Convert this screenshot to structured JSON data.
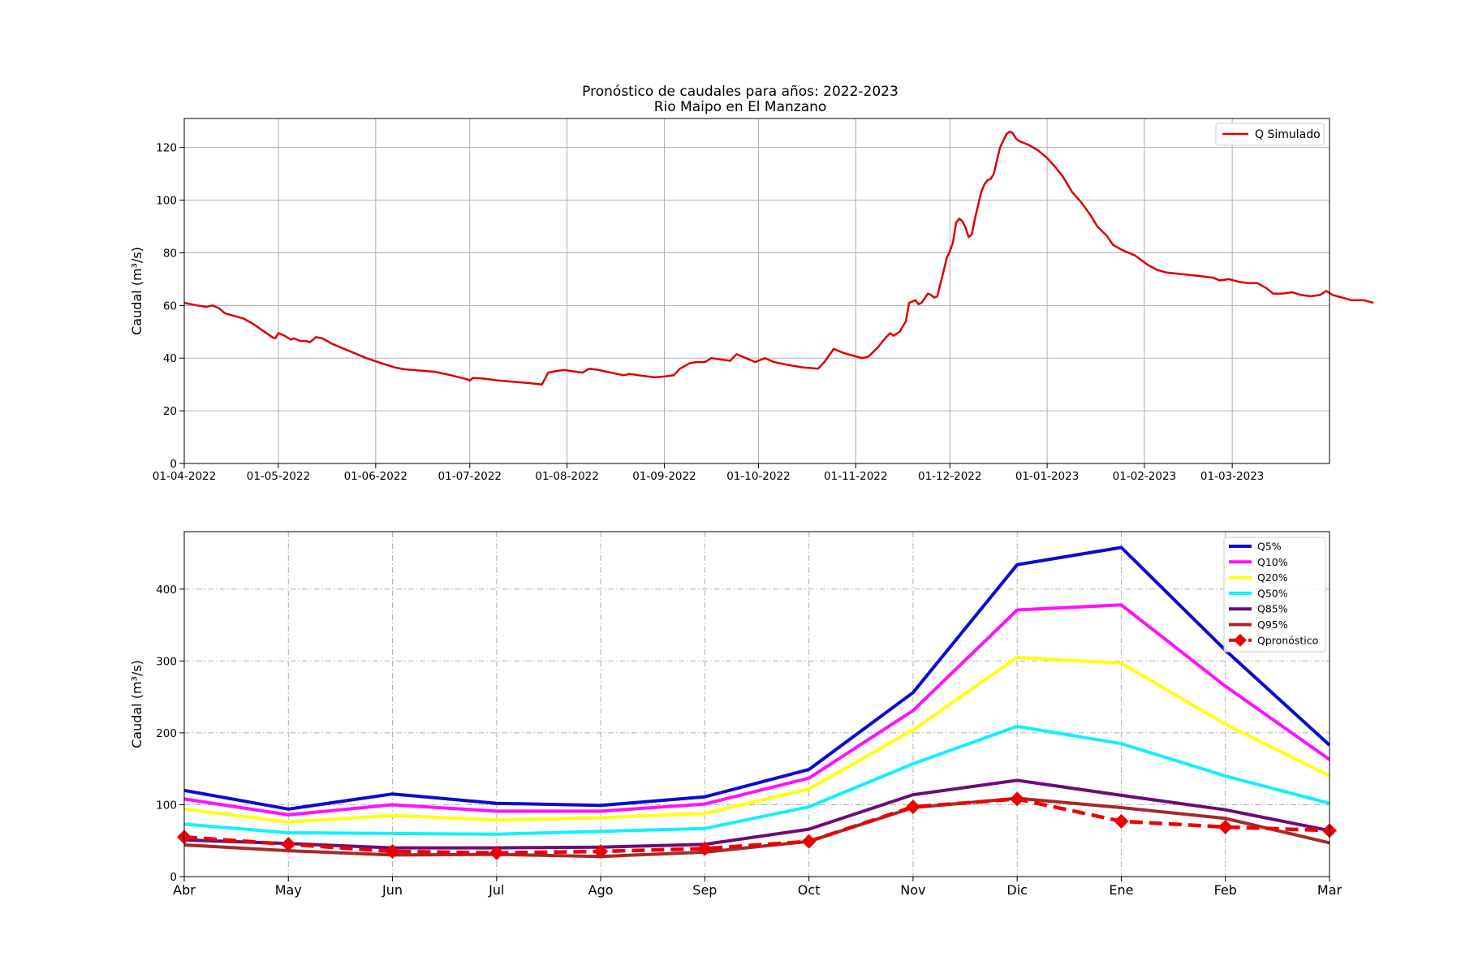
{
  "figure": {
    "title_line1": "Pronóstico de caudales para años: 2022-2023",
    "title_line2": "Rio Maipo en El Manzano"
  },
  "chart_data": [
    {
      "type": "line",
      "ylabel": "Caudal (m³/s)",
      "ylim": [
        0,
        131
      ],
      "yticks": [
        0,
        20,
        40,
        60,
        80,
        100,
        120
      ],
      "grid": true,
      "legend_position": "upper right",
      "xlim_dates": [
        "2022-04-01",
        "2023-03-31"
      ],
      "xtick_dates": [
        "2022-04-01",
        "2022-05-01",
        "2022-06-01",
        "2022-07-01",
        "2022-08-01",
        "2022-09-01",
        "2022-10-01",
        "2022-11-01",
        "2022-12-01",
        "2023-01-01",
        "2023-02-01",
        "2023-03-01"
      ],
      "xtick_labels": [
        "01-04-2022",
        "01-05-2022",
        "01-06-2022",
        "01-07-2022",
        "01-08-2022",
        "01-09-2022",
        "01-10-2022",
        "01-11-2022",
        "01-12-2022",
        "01-01-2023",
        "01-02-2023",
        "01-03-2023"
      ],
      "series": [
        {
          "name": "Q Simulado",
          "color": "#dd0000",
          "points": [
            [
              "2022-04-01",
              61
            ],
            [
              "2022-04-03",
              60.5
            ],
            [
              "2022-04-05",
              60
            ],
            [
              "2022-04-08",
              59.5
            ],
            [
              "2022-04-10",
              60
            ],
            [
              "2022-04-12",
              59
            ],
            [
              "2022-04-14",
              57
            ],
            [
              "2022-04-17",
              56
            ],
            [
              "2022-04-20",
              55
            ],
            [
              "2022-04-23",
              53
            ],
            [
              "2022-04-26",
              50.5
            ],
            [
              "2022-04-29",
              48
            ],
            [
              "2022-04-30",
              47.5
            ],
            [
              "2022-05-01",
              49.5
            ],
            [
              "2022-05-03",
              48.5
            ],
            [
              "2022-05-05",
              47
            ],
            [
              "2022-05-06",
              47.5
            ],
            [
              "2022-05-08",
              46.5
            ],
            [
              "2022-05-10",
              46.5
            ],
            [
              "2022-05-11",
              46
            ],
            [
              "2022-05-13",
              48
            ],
            [
              "2022-05-15",
              47.5
            ],
            [
              "2022-05-18",
              45.5
            ],
            [
              "2022-05-21",
              44
            ],
            [
              "2022-05-25",
              42
            ],
            [
              "2022-05-29",
              40
            ],
            [
              "2022-06-03",
              38
            ],
            [
              "2022-06-07",
              36.5
            ],
            [
              "2022-06-10",
              35.8
            ],
            [
              "2022-06-15",
              35.3
            ],
            [
              "2022-06-20",
              34.8
            ],
            [
              "2022-06-25",
              33.5
            ],
            [
              "2022-06-30",
              32
            ],
            [
              "2022-07-01",
              31.5
            ],
            [
              "2022-07-02",
              32.5
            ],
            [
              "2022-07-05",
              32.3
            ],
            [
              "2022-07-10",
              31.5
            ],
            [
              "2022-07-15",
              31
            ],
            [
              "2022-07-20",
              30.5
            ],
            [
              "2022-07-24",
              30
            ],
            [
              "2022-07-26",
              34.5
            ],
            [
              "2022-07-28",
              35
            ],
            [
              "2022-07-31",
              35.5
            ],
            [
              "2022-08-03",
              35
            ],
            [
              "2022-08-06",
              34.5
            ],
            [
              "2022-08-08",
              36
            ],
            [
              "2022-08-11",
              35.5
            ],
            [
              "2022-08-15",
              34.5
            ],
            [
              "2022-08-19",
              33.5
            ],
            [
              "2022-08-21",
              34
            ],
            [
              "2022-08-25",
              33.3
            ],
            [
              "2022-08-29",
              32.7
            ],
            [
              "2022-09-01",
              33
            ],
            [
              "2022-09-04",
              33.5
            ],
            [
              "2022-09-06",
              36
            ],
            [
              "2022-09-09",
              38
            ],
            [
              "2022-09-11",
              38.5
            ],
            [
              "2022-09-14",
              38.5
            ],
            [
              "2022-09-16",
              40
            ],
            [
              "2022-09-19",
              39.5
            ],
            [
              "2022-09-22",
              39
            ],
            [
              "2022-09-24",
              41.5
            ],
            [
              "2022-09-27",
              40
            ],
            [
              "2022-09-30",
              38.5
            ],
            [
              "2022-10-03",
              40
            ],
            [
              "2022-10-06",
              38.5
            ],
            [
              "2022-10-10",
              37.5
            ],
            [
              "2022-10-15",
              36.5
            ],
            [
              "2022-10-20",
              36
            ],
            [
              "2022-10-22",
              38.5
            ],
            [
              "2022-10-25",
              43.5
            ],
            [
              "2022-10-28",
              42
            ],
            [
              "2022-10-31",
              41
            ],
            [
              "2022-11-03",
              40
            ],
            [
              "2022-11-05",
              40.5
            ],
            [
              "2022-11-08",
              44
            ],
            [
              "2022-11-10",
              47
            ],
            [
              "2022-11-12",
              49.5
            ],
            [
              "2022-11-13",
              48.5
            ],
            [
              "2022-11-15",
              50
            ],
            [
              "2022-11-17",
              54
            ],
            [
              "2022-11-18",
              61
            ],
            [
              "2022-11-19",
              61.5
            ],
            [
              "2022-11-20",
              62
            ],
            [
              "2022-11-21",
              60.5
            ],
            [
              "2022-11-22",
              61
            ],
            [
              "2022-11-24",
              64.5
            ],
            [
              "2022-11-25",
              64
            ],
            [
              "2022-11-26",
              63
            ],
            [
              "2022-11-27",
              63.5
            ],
            [
              "2022-11-29",
              73
            ],
            [
              "2022-11-30",
              78
            ],
            [
              "2022-12-01",
              80.5
            ],
            [
              "2022-12-02",
              84
            ],
            [
              "2022-12-03",
              91.5
            ],
            [
              "2022-12-04",
              93
            ],
            [
              "2022-12-05",
              92
            ],
            [
              "2022-12-06",
              89.5
            ],
            [
              "2022-12-07",
              86
            ],
            [
              "2022-12-08",
              87
            ],
            [
              "2022-12-09",
              93
            ],
            [
              "2022-12-10",
              98
            ],
            [
              "2022-12-11",
              103
            ],
            [
              "2022-12-12",
              106
            ],
            [
              "2022-12-13",
              107.5
            ],
            [
              "2022-12-14",
              108
            ],
            [
              "2022-12-15",
              110
            ],
            [
              "2022-12-16",
              115
            ],
            [
              "2022-12-17",
              120
            ],
            [
              "2022-12-18",
              122.5
            ],
            [
              "2022-12-19",
              125
            ],
            [
              "2022-12-20",
              126
            ],
            [
              "2022-12-21",
              125.5
            ],
            [
              "2022-12-22",
              123.5
            ],
            [
              "2022-12-23",
              122.5
            ],
            [
              "2022-12-26",
              121
            ],
            [
              "2022-12-29",
              119
            ],
            [
              "2023-01-01",
              116
            ],
            [
              "2023-01-04",
              112
            ],
            [
              "2023-01-06",
              109
            ],
            [
              "2023-01-09",
              103
            ],
            [
              "2023-01-12",
              99
            ],
            [
              "2023-01-15",
              94
            ],
            [
              "2023-01-17",
              90
            ],
            [
              "2023-01-20",
              86.5
            ],
            [
              "2023-01-22",
              83
            ],
            [
              "2023-01-25",
              81
            ],
            [
              "2023-01-29",
              79
            ],
            [
              "2023-02-02",
              75.5
            ],
            [
              "2023-02-05",
              73.5
            ],
            [
              "2023-02-08",
              72.5
            ],
            [
              "2023-02-12",
              72
            ],
            [
              "2023-02-16",
              71.5
            ],
            [
              "2023-02-20",
              71
            ],
            [
              "2023-02-23",
              70.5
            ],
            [
              "2023-02-25",
              69.5
            ],
            [
              "2023-02-28",
              70
            ],
            [
              "2023-03-03",
              69
            ],
            [
              "2023-03-06",
              68.5
            ],
            [
              "2023-03-09",
              68.5
            ],
            [
              "2023-03-12",
              66.5
            ],
            [
              "2023-03-14",
              64.5
            ],
            [
              "2023-03-17",
              64.5
            ],
            [
              "2023-03-20",
              65
            ],
            [
              "2023-03-23",
              64
            ],
            [
              "2023-03-26",
              63.5
            ],
            [
              "2023-03-29",
              64
            ],
            [
              "2023-03-31",
              65.5
            ],
            [
              "2023-04-02",
              64
            ],
            [
              "2023-04-05",
              63
            ],
            [
              "2023-04-08",
              62
            ],
            [
              "2023-04-12",
              62
            ],
            [
              "2023-04-15",
              61
            ]
          ]
        }
      ]
    },
    {
      "type": "line",
      "ylabel": "Caudal (m³/s)",
      "ylim": [
        0,
        480
      ],
      "yticks": [
        0,
        100,
        200,
        300,
        400
      ],
      "grid": true,
      "grid_style": "dashdot",
      "legend_position": "upper right",
      "categories": [
        "Abr",
        "May",
        "Jun",
        "Jul",
        "Ago",
        "Sep",
        "Oct",
        "Nov",
        "Dic",
        "Ene",
        "Feb",
        "Mar"
      ],
      "series": [
        {
          "name": "Q5%",
          "color": "#0a0ad2",
          "dashed": false,
          "marker": false,
          "values": [
            120,
            94,
            115,
            102,
            99,
            111,
            149,
            256,
            434,
            458,
            315,
            183
          ]
        },
        {
          "name": "Q10%",
          "color": "#ff10ff",
          "dashed": false,
          "marker": false,
          "values": [
            108,
            86,
            100,
            91,
            91,
            101,
            137,
            231,
            371,
            378,
            265,
            163
          ]
        },
        {
          "name": "Q20%",
          "color": "#ffff10",
          "dashed": false,
          "marker": false,
          "values": [
            94,
            76,
            85,
            79,
            82,
            88,
            122,
            204,
            305,
            297,
            212,
            140
          ]
        },
        {
          "name": "Q50%",
          "color": "#10f0ff",
          "dashed": false,
          "marker": false,
          "values": [
            73,
            61,
            60,
            59,
            63,
            67,
            97,
            157,
            209,
            185,
            140,
            102
          ]
        },
        {
          "name": "Q85%",
          "color": "#6e0a7a",
          "dashed": false,
          "marker": false,
          "values": [
            51,
            46,
            40,
            40,
            41,
            45,
            66,
            114,
            134,
            113,
            93,
            64
          ]
        },
        {
          "name": "Q95%",
          "color": "#a52a2a",
          "dashed": false,
          "marker": false,
          "values": [
            44,
            36,
            30,
            31,
            28,
            34,
            49,
            96,
            109,
            96,
            81,
            47
          ]
        },
        {
          "name": "Qpronóstico",
          "color": "#ee0000",
          "dashed": true,
          "marker": true,
          "values": [
            55,
            45,
            35,
            33,
            35,
            39,
            49,
            97,
            108,
            77,
            69,
            64
          ]
        }
      ]
    }
  ]
}
